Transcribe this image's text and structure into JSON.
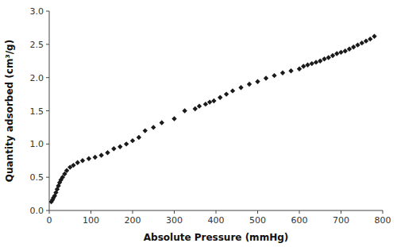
{
  "chart_data": {
    "type": "scatter",
    "x": [
      5,
      8,
      10,
      13,
      16,
      19,
      22,
      25,
      28,
      32,
      37,
      42,
      50,
      58,
      68,
      80,
      95,
      110,
      125,
      140,
      155,
      170,
      185,
      200,
      215,
      230,
      250,
      270,
      300,
      325,
      350,
      360,
      375,
      385,
      395,
      410,
      425,
      440,
      460,
      480,
      500,
      520,
      540,
      560,
      580,
      600,
      610,
      620,
      630,
      640,
      650,
      660,
      670,
      680,
      690,
      700,
      710,
      720,
      730,
      740,
      750,
      760,
      770,
      780
    ],
    "y": [
      0.13,
      0.16,
      0.19,
      0.22,
      0.27,
      0.32,
      0.37,
      0.42,
      0.46,
      0.5,
      0.55,
      0.6,
      0.65,
      0.68,
      0.72,
      0.75,
      0.78,
      0.8,
      0.83,
      0.87,
      0.93,
      0.96,
      1.0,
      1.05,
      1.1,
      1.2,
      1.25,
      1.32,
      1.38,
      1.5,
      1.53,
      1.57,
      1.6,
      1.63,
      1.65,
      1.7,
      1.75,
      1.8,
      1.85,
      1.9,
      1.94,
      1.99,
      2.03,
      2.07,
      2.1,
      2.13,
      2.17,
      2.19,
      2.21,
      2.23,
      2.25,
      2.28,
      2.3,
      2.33,
      2.36,
      2.38,
      2.4,
      2.43,
      2.46,
      2.49,
      2.52,
      2.55,
      2.58,
      2.62
    ],
    "marker": "diamond",
    "color": "#1a1a1a",
    "xlabel": "Absolute Pressure (mmHg)",
    "ylabel": "Quantity adsorbed (cm³/g)",
    "xlim": [
      0,
      800
    ],
    "ylim": [
      0,
      3
    ],
    "xticks": [
      0,
      100,
      200,
      300,
      400,
      500,
      600,
      700,
      800
    ],
    "yticks": [
      {
        "value": 0,
        "label": "0.0"
      },
      0.5,
      {
        "value": 1,
        "label": "1.0"
      },
      1.5,
      {
        "value": 2,
        "label": "2.0"
      },
      2.5,
      {
        "value": 3,
        "label": "3.0"
      }
    ],
    "grid": false
  }
}
